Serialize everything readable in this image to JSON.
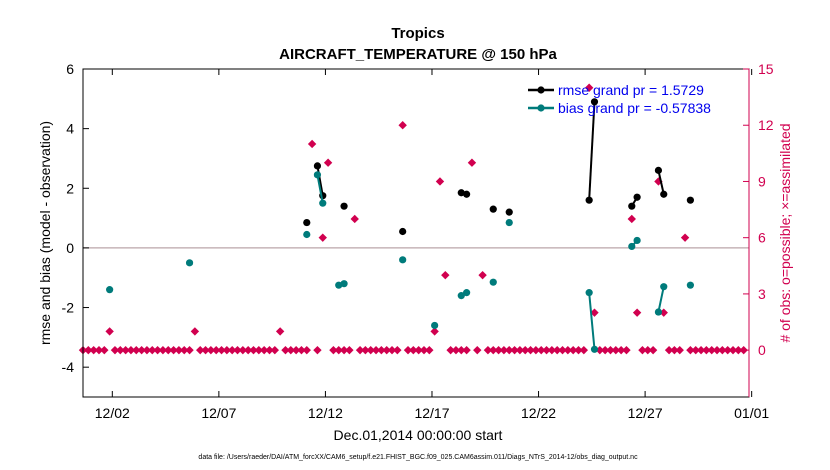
{
  "chart_data": {
    "type": "scatter",
    "title": "Tropics",
    "subtitle": "AIRCRAFT_TEMPERATURE @ 150 hPa",
    "xlabel": "Dec.01,2014 00:00:00 start",
    "ylabel": "rmse and bias (model - observation)",
    "y2label": "# of obs: o=possible; ×=assimilated",
    "footnote": "data file: /Users/raeder/DAI/ATM_forcXX/CAM6_setup/f.e21.FHIST_BGC.f09_025.CAM6assim.011/Diags_NTrS_2014-12/obs_diag_output.nc",
    "xlim": [
      0,
      31.25
    ],
    "ylim": [
      -5,
      6
    ],
    "y2lim": [
      -2.5,
      15
    ],
    "x_ticks": [
      1.375,
      6.375,
      11.375,
      16.375,
      21.375,
      26.375,
      31.375
    ],
    "x_tick_labels": [
      "12/02",
      "12/07",
      "12/12",
      "12/17",
      "12/22",
      "12/27",
      "01/01"
    ],
    "y_ticks": [
      -4,
      -2,
      0,
      2,
      4,
      6
    ],
    "y2_ticks": [
      0,
      3,
      6,
      9,
      12,
      15
    ],
    "zero_line": 0,
    "colors": {
      "rmse": "#000000",
      "bias": "#007b7b",
      "nobs": "#d1004f",
      "legend_text": "#0000ee",
      "zero_line": "#bba6aa"
    },
    "series": [
      {
        "name": "rmse grand pr = 1.5729",
        "color": "#000000",
        "points": [
          [
            10.5,
            0.85
          ],
          [
            11.0,
            2.75
          ],
          [
            11.25,
            1.75
          ],
          [
            12.25,
            1.4
          ],
          [
            15.0,
            0.55
          ],
          [
            17.75,
            1.85
          ],
          [
            18.0,
            1.8
          ],
          [
            19.25,
            1.3
          ],
          [
            20.0,
            1.2
          ],
          [
            23.75,
            1.6
          ],
          [
            24.0,
            4.9
          ],
          [
            25.75,
            1.4
          ],
          [
            26.0,
            1.7
          ],
          [
            27.0,
            2.6
          ],
          [
            27.25,
            1.8
          ],
          [
            28.5,
            1.6
          ]
        ]
      },
      {
        "name": "bias grand pr = -0.57838",
        "color": "#007b7b",
        "points": [
          [
            1.25,
            -1.4
          ],
          [
            5.0,
            -0.5
          ],
          [
            10.5,
            0.45
          ],
          [
            11.0,
            2.45
          ],
          [
            11.25,
            1.5
          ],
          [
            12.0,
            -1.25
          ],
          [
            12.25,
            -1.2
          ],
          [
            15.0,
            -0.4
          ],
          [
            16.5,
            -2.6
          ],
          [
            17.75,
            -1.6
          ],
          [
            18.0,
            -1.5
          ],
          [
            19.25,
            -1.15
          ],
          [
            20.0,
            0.85
          ],
          [
            23.75,
            -1.5
          ],
          [
            24.0,
            -3.4
          ],
          [
            25.75,
            0.05
          ],
          [
            26.0,
            0.25
          ],
          [
            27.0,
            -2.15
          ],
          [
            27.25,
            -1.3
          ],
          [
            28.5,
            -1.25
          ]
        ]
      }
    ],
    "nobs_day_step": 0.25,
    "nobs_counts": [
      0,
      0,
      0,
      0,
      0,
      1,
      0,
      0,
      0,
      0,
      0,
      0,
      0,
      0,
      0,
      0,
      0,
      0,
      0,
      0,
      0,
      1,
      0,
      0,
      0,
      0,
      0,
      0,
      0,
      0,
      0,
      0,
      0,
      0,
      0,
      0,
      0,
      1,
      0,
      0,
      0,
      0,
      0,
      11,
      0,
      6,
      10,
      0,
      0,
      0,
      0,
      7,
      0,
      0,
      0,
      0,
      0,
      0,
      0,
      0,
      12,
      0,
      0,
      0,
      0,
      0,
      1,
      9,
      4,
      0,
      0,
      0,
      0,
      10,
      0,
      4,
      0,
      0,
      0,
      0,
      0,
      0,
      0,
      0,
      0,
      0,
      0,
      0,
      0,
      0,
      0,
      0,
      0,
      0,
      0,
      14,
      2,
      0,
      0,
      0,
      0,
      0,
      0,
      7,
      2,
      0,
      0,
      0,
      9,
      2,
      0,
      0,
      0,
      6,
      0,
      0,
      0,
      0,
      0,
      0,
      0,
      0,
      0,
      0,
      0
    ],
    "legend": [
      "rmse grand pr = 1.5729",
      "bias grand pr = -0.57838"
    ]
  }
}
